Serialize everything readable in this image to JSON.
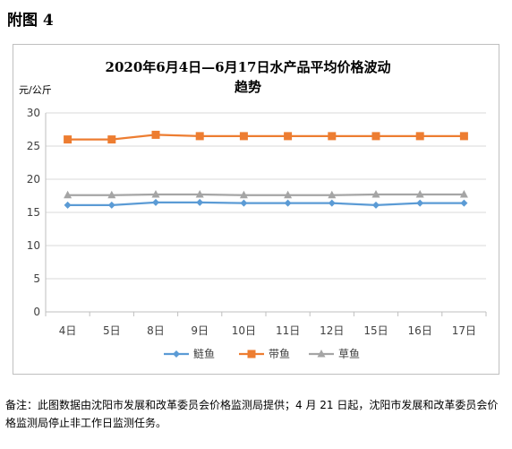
{
  "figure_label": "附图 4",
  "note": "备注：此图数据由沈阳市发展和改革委员会价格监测局提供；4 月 21 日起，沈阳市发展和改革委员会价格监测局停止非工作日监测任务。",
  "chart_data": {
    "type": "line",
    "title": "2020年6月4日—6月17日水产品平均价格波动",
    "title_line2": "趋势",
    "ylabel": "元/公斤",
    "xlabel": "",
    "ylim": [
      0,
      30
    ],
    "yticks": [
      "0",
      "5",
      "10",
      "15",
      "20",
      "25",
      "30"
    ],
    "categories": [
      "4日",
      "5日",
      "8日",
      "9日",
      "10日",
      "11日",
      "12日",
      "15日",
      "16日",
      "17日"
    ],
    "grid": true,
    "legend_position": "bottom",
    "series": [
      {
        "name": "鲢鱼",
        "color": "#5b9bd5",
        "marker": "diamond",
        "values": [
          16.1,
          16.1,
          16.5,
          16.5,
          16.4,
          16.4,
          16.4,
          16.1,
          16.4,
          16.4
        ]
      },
      {
        "name": "带鱼",
        "color": "#ed7d31",
        "marker": "square",
        "values": [
          26.0,
          26.0,
          26.7,
          26.5,
          26.5,
          26.5,
          26.5,
          26.5,
          26.5,
          26.5
        ]
      },
      {
        "name": "草鱼",
        "color": "#a5a5a5",
        "marker": "triangle",
        "values": [
          17.6,
          17.6,
          17.7,
          17.7,
          17.6,
          17.6,
          17.6,
          17.7,
          17.7,
          17.7
        ]
      }
    ]
  }
}
